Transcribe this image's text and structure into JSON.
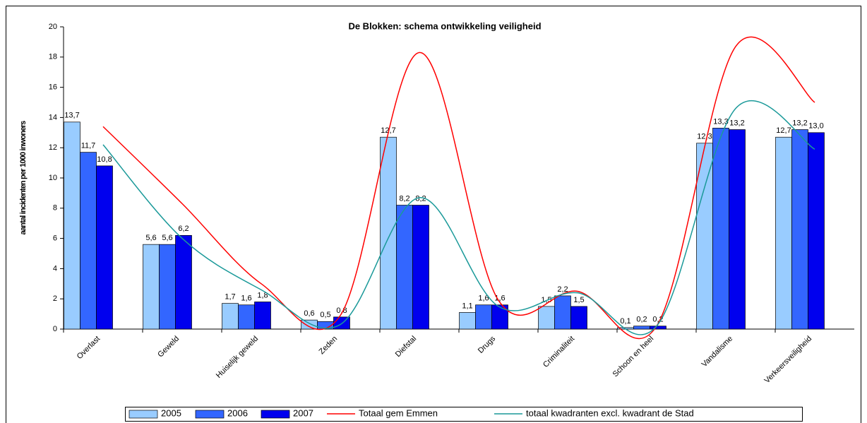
{
  "chart_data": {
    "type": "bar_line",
    "title": "De Blokken: schema ontwikkeling veiligheid",
    "y_label": "aantal incidenten per 1000 inwoners",
    "categories": [
      "Overlast",
      "Geweld",
      "Huiselijk geweld",
      "Zeden",
      "Diefstal",
      "Drugs",
      "Criminaliteit",
      "Schoon en heel",
      "Vandalisme",
      "Verkeersveiligheid"
    ],
    "ylim": [
      0,
      20
    ],
    "yticks": [
      0,
      2,
      4,
      6,
      8,
      10,
      12,
      14,
      16,
      18,
      20
    ],
    "legend": "bottom",
    "series": [
      {
        "name": "2005",
        "type": "bar",
        "color": "#99ccff",
        "values": [
          13.7,
          5.6,
          1.7,
          0.6,
          12.7,
          1.1,
          1.5,
          0.1,
          12.3,
          12.7
        ],
        "value_labels": [
          "13,7",
          "5,6",
          "1,7",
          "0,6",
          "12,7",
          "1,1",
          "1,5",
          "0,1",
          "12,3",
          "12,7"
        ]
      },
      {
        "name": "2006",
        "type": "bar",
        "color": "#3366ff",
        "values": [
          11.7,
          5.6,
          1.6,
          0.5,
          8.2,
          1.6,
          2.2,
          0.2,
          13.3,
          13.2
        ],
        "value_labels": [
          "11,7",
          "5,6",
          "1,6",
          "0,5",
          "8,2",
          "1,6",
          "2,2",
          "0,2",
          "13,3",
          "13,2"
        ]
      },
      {
        "name": "2007",
        "type": "bar",
        "color": "#0000ee",
        "values": [
          10.8,
          6.2,
          1.8,
          0.8,
          8.2,
          1.6,
          1.5,
          0.2,
          13.2,
          13.0
        ],
        "value_labels": [
          "10,8",
          "6,2",
          "1,8",
          "0,8",
          "8,2",
          "1,6",
          "1,5",
          "0,2",
          "13,2",
          "13,0"
        ]
      },
      {
        "name": "Totaal gem Emmen",
        "type": "line",
        "color": "#ff0000",
        "values": [
          13.4,
          8.3,
          3.0,
          0.9,
          18.3,
          1.9,
          2.5,
          0.2,
          18.7,
          15.0
        ]
      },
      {
        "name": "totaal kwadranten excl. kwadrant de Stad",
        "type": "line",
        "color": "#1a9999",
        "values": [
          12.2,
          6.0,
          2.6,
          0.3,
          8.7,
          1.5,
          2.4,
          0.2,
          14.6,
          11.9
        ]
      }
    ]
  }
}
